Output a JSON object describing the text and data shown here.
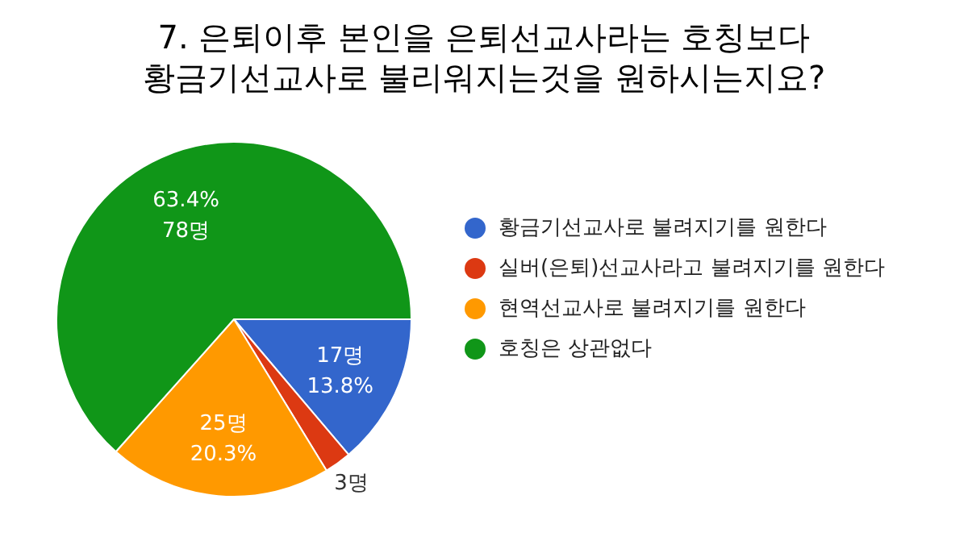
{
  "chart_data": {
    "type": "pie",
    "title": "7. 은퇴이후 본인을 은퇴선교사라는 호칭보다\n황금기선교사로 불리워지는것을 원하시는지요?",
    "categories": [
      "황금기선교사로 불려지기를 원한다",
      "실버(은퇴)선교사라고 불려지기를 원한다",
      "현역선교사로 불려지기를 원한다",
      "호칭은 상관없다"
    ],
    "values": [
      17,
      3,
      25,
      78
    ],
    "value_labels": [
      "17명\n13.8%",
      "3명",
      "25명\n20.3%",
      "63.4%\n78명"
    ],
    "colors": [
      "#3366cc",
      "#dc3912",
      "#ff9900",
      "#109618"
    ],
    "legend": "right"
  }
}
